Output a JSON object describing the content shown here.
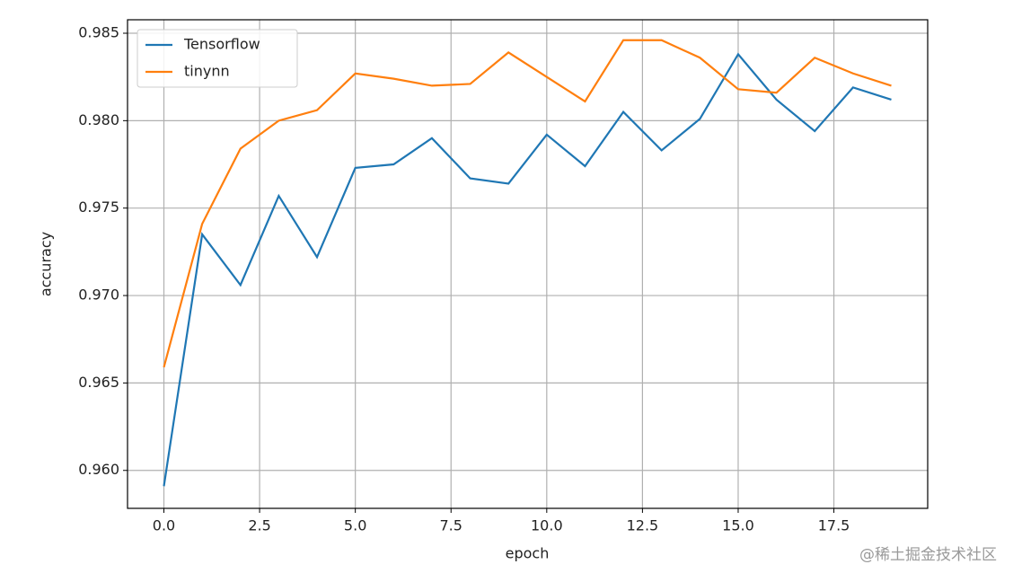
{
  "chart_data": {
    "type": "line",
    "x_label": "epoch",
    "y_label": "accuracy",
    "x": [
      0,
      1,
      2,
      3,
      4,
      5,
      6,
      7,
      8,
      9,
      10,
      11,
      12,
      13,
      14,
      15,
      16,
      17,
      18,
      19
    ],
    "series": [
      {
        "name": "Tensorflow",
        "color": "#1f77b4",
        "values": [
          0.9591,
          0.9735,
          0.9706,
          0.9757,
          0.9722,
          0.9773,
          0.9775,
          0.979,
          0.9767,
          0.9764,
          0.9792,
          0.9774,
          0.9805,
          0.9783,
          0.9801,
          0.9838,
          0.9812,
          0.9794,
          0.9819,
          0.9812
        ]
      },
      {
        "name": "tinynn",
        "color": "#ff7f0e",
        "values": [
          0.9659,
          0.9741,
          0.9784,
          0.98,
          0.9806,
          0.9827,
          0.9824,
          0.982,
          0.9821,
          0.9839,
          0.9825,
          0.9811,
          0.9846,
          0.9846,
          0.9836,
          0.9818,
          0.9816,
          0.9836,
          0.9827,
          0.982
        ]
      }
    ],
    "xlim": [
      -0.95,
      19.95
    ],
    "ylim": [
      0.95783,
      0.98577
    ],
    "xticks": [
      {
        "value": 0,
        "label": "0.0"
      },
      {
        "value": 2.5,
        "label": "2.5"
      },
      {
        "value": 5,
        "label": "5.0"
      },
      {
        "value": 7.5,
        "label": "7.5"
      },
      {
        "value": 10,
        "label": "10.0"
      },
      {
        "value": 12.5,
        "label": "12.5"
      },
      {
        "value": 15,
        "label": "15.0"
      },
      {
        "value": 17.5,
        "label": "17.5"
      }
    ],
    "yticks": [
      {
        "value": 0.96,
        "label": "0.960"
      },
      {
        "value": 0.965,
        "label": "0.965"
      },
      {
        "value": 0.97,
        "label": "0.970"
      },
      {
        "value": 0.975,
        "label": "0.975"
      },
      {
        "value": 0.98,
        "label": "0.980"
      },
      {
        "value": 0.985,
        "label": "0.985"
      }
    ],
    "grid": true,
    "legend": "upper-left"
  },
  "watermark": "@稀土掘金技术社区"
}
